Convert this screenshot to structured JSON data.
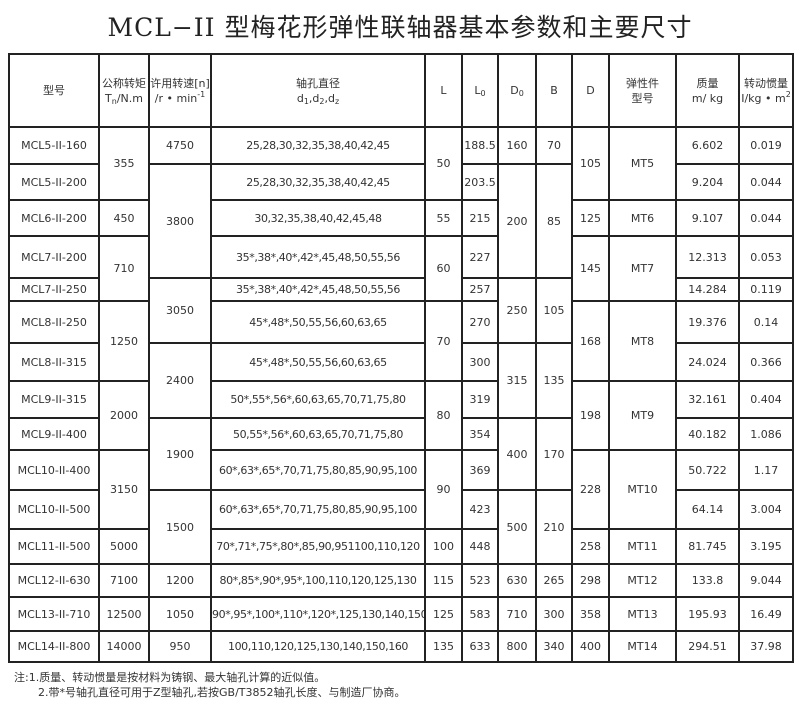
{
  "title": "MCL−II 型梅花形弹性联轴器基本参数和主要尺寸",
  "header": {
    "model": "型号",
    "torque_1": "公称转矩",
    "torque_2a": "T",
    "torque_2sub": "n",
    "torque_2b": "/N.m",
    "speed_1": "许用转速[n]",
    "speed_2": "/r • min",
    "speed_sup": "-1",
    "bore_1": "轴孔直径",
    "bore_2a": "d",
    "bore_s1": "1",
    "bore_c1": ",d",
    "bore_s2": "2",
    "bore_c2": ",d",
    "bore_s3": "z",
    "L": "L",
    "L0": "L",
    "L0_sub": "0",
    "D0": "D",
    "D0_sub": "0",
    "B": "B",
    "D": "D",
    "elastic_1": "弹性件",
    "elastic_2": "型号",
    "mass_1": "质量",
    "mass_2": "m/ kg",
    "inertia_1": "转动惯量",
    "inertia_2": "I/kg • m",
    "inertia_sup": "2"
  },
  "rows": [
    [
      {
        "v": "MCL5-II-160"
      },
      {
        "v": "355",
        "rs": 2
      },
      {
        "v": "4750"
      },
      {
        "v": "25,28,30,32,35,38,40,42,45"
      },
      {
        "v": "50",
        "rs": 2
      },
      {
        "v": "188.5"
      },
      {
        "v": "160"
      },
      {
        "v": "70"
      },
      {
        "v": "105",
        "rs": 2
      },
      {
        "v": "MT5",
        "rs": 2
      },
      {
        "v": "6.602"
      },
      {
        "v": "0.019"
      }
    ],
    [
      {
        "v": "MCL5-II-200"
      },
      {
        "v": "3800",
        "rs": 3
      },
      {
        "v": "25,28,30,32,35,38,40,42,45"
      },
      {
        "v": "203.5"
      },
      {
        "v": "200",
        "rs": 3
      },
      {
        "v": "85",
        "rs": 3
      },
      {
        "v": "9.204"
      },
      {
        "v": "0.044"
      }
    ],
    [
      {
        "v": "MCL6-II-200"
      },
      {
        "v": "450"
      },
      {
        "v": "30,32,35,38,40,42,45,48"
      },
      {
        "v": "55"
      },
      {
        "v": "215"
      },
      {
        "v": "125"
      },
      {
        "v": "MT6"
      },
      {
        "v": "9.107"
      },
      {
        "v": "0.044"
      }
    ],
    [
      {
        "v": "MCL7-II-200"
      },
      {
        "v": "710",
        "rs": 2
      },
      {
        "v": "35*,38*,40*,42*,45,48,50,55,56"
      },
      {
        "v": "60",
        "rs": 2
      },
      {
        "v": "227"
      },
      {
        "v": "145",
        "rs": 2
      },
      {
        "v": "MT7",
        "rs": 2
      },
      {
        "v": "12.313"
      },
      {
        "v": "0.053"
      }
    ],
    [
      {
        "v": "MCL7-II-250"
      },
      {
        "v": "3050",
        "rs": 2
      },
      {
        "v": "35*,38*,40*,42*,45,48,50,55,56"
      },
      {
        "v": "257"
      },
      {
        "v": "250",
        "rs": 2
      },
      {
        "v": "105",
        "rs": 2
      },
      {
        "v": "14.284"
      },
      {
        "v": "0.119"
      }
    ],
    [
      {
        "v": "MCL8-II-250"
      },
      {
        "v": "1250",
        "rs": 2
      },
      {
        "v": "45*,48*,50,55,56,60,63,65"
      },
      {
        "v": "70",
        "rs": 2
      },
      {
        "v": "270"
      },
      {
        "v": "168",
        "rs": 2
      },
      {
        "v": "MT8",
        "rs": 2
      },
      {
        "v": "19.376"
      },
      {
        "v": "0.14"
      }
    ],
    [
      {
        "v": "MCL8-II-315"
      },
      {
        "v": "2400",
        "rs": 2
      },
      {
        "v": "45*,48*,50,55,56,60,63,65"
      },
      {
        "v": "300"
      },
      {
        "v": "315",
        "rs": 2
      },
      {
        "v": "135",
        "rs": 2
      },
      {
        "v": "24.024"
      },
      {
        "v": "0.366"
      }
    ],
    [
      {
        "v": "MCL9-II-315"
      },
      {
        "v": "2000",
        "rs": 2
      },
      {
        "v": "50*,55*,56*,60,63,65,70,71,75,80"
      },
      {
        "v": "80",
        "rs": 2
      },
      {
        "v": "319"
      },
      {
        "v": "198",
        "rs": 2
      },
      {
        "v": "MT9",
        "rs": 2
      },
      {
        "v": "32.161"
      },
      {
        "v": "0.404"
      }
    ],
    [
      {
        "v": "MCL9-II-400"
      },
      {
        "v": "1900",
        "rs": 2
      },
      {
        "v": "50,55*,56*,60,63,65,70,71,75,80"
      },
      {
        "v": "354"
      },
      {
        "v": "400",
        "rs": 2
      },
      {
        "v": "170",
        "rs": 2
      },
      {
        "v": "40.182"
      },
      {
        "v": "1.086"
      }
    ],
    [
      {
        "v": "MCL10-II-400"
      },
      {
        "v": "3150",
        "rs": 2
      },
      {
        "v": "60*,63*,65*,70,71,75,80,85,90,95,100"
      },
      {
        "v": "90",
        "rs": 2
      },
      {
        "v": "369"
      },
      {
        "v": "228",
        "rs": 2
      },
      {
        "v": "MT10",
        "rs": 2
      },
      {
        "v": "50.722"
      },
      {
        "v": "1.17"
      }
    ],
    [
      {
        "v": "MCL10-II-500"
      },
      {
        "v": "1500",
        "rs": 2
      },
      {
        "v": "60*,63*,65*,70,71,75,80,85,90,95,100"
      },
      {
        "v": "423"
      },
      {
        "v": "500",
        "rs": 2
      },
      {
        "v": "210",
        "rs": 2
      },
      {
        "v": "64.14"
      },
      {
        "v": "3.004"
      }
    ],
    [
      {
        "v": "MCL11-II-500"
      },
      {
        "v": "5000"
      },
      {
        "v": "70*,71*,75*,80*,85,90,951100,110,120"
      },
      {
        "v": "100"
      },
      {
        "v": "448"
      },
      {
        "v": "258"
      },
      {
        "v": "MT11"
      },
      {
        "v": "81.745"
      },
      {
        "v": "3.195"
      }
    ],
    [
      {
        "v": "MCL12-II-630"
      },
      {
        "v": "7100"
      },
      {
        "v": "1200"
      },
      {
        "v": "80*,85*,90*,95*,100,110,120,125,130"
      },
      {
        "v": "115"
      },
      {
        "v": "523"
      },
      {
        "v": "630"
      },
      {
        "v": "265"
      },
      {
        "v": "298"
      },
      {
        "v": "MT12"
      },
      {
        "v": "133.8"
      },
      {
        "v": "9.044"
      }
    ],
    [
      {
        "v": "MCL13-II-710"
      },
      {
        "v": "12500"
      },
      {
        "v": "1050"
      },
      {
        "v": "90*,95*,100*,110*,120*,125,130,140,150"
      },
      {
        "v": "125"
      },
      {
        "v": "583"
      },
      {
        "v": "710"
      },
      {
        "v": "300"
      },
      {
        "v": "358"
      },
      {
        "v": "MT13"
      },
      {
        "v": "195.93"
      },
      {
        "v": "16.49"
      }
    ],
    [
      {
        "v": "MCL14-II-800"
      },
      {
        "v": "14000"
      },
      {
        "v": "950"
      },
      {
        "v": "100,110,120,125,130,140,150,160"
      },
      {
        "v": "135"
      },
      {
        "v": "633"
      },
      {
        "v": "800"
      },
      {
        "v": "340"
      },
      {
        "v": "400"
      },
      {
        "v": "MT14"
      },
      {
        "v": "294.51"
      },
      {
        "v": "37.98"
      }
    ]
  ],
  "notes": [
    "注:1.质量、转动惯量是按材料为铸钢、最大轴孔计算的近似值。",
    "2.带*号轴孔直径可用于Z型轴孔,若按GB/T3852轴孔长度、与制造厂协商。"
  ]
}
